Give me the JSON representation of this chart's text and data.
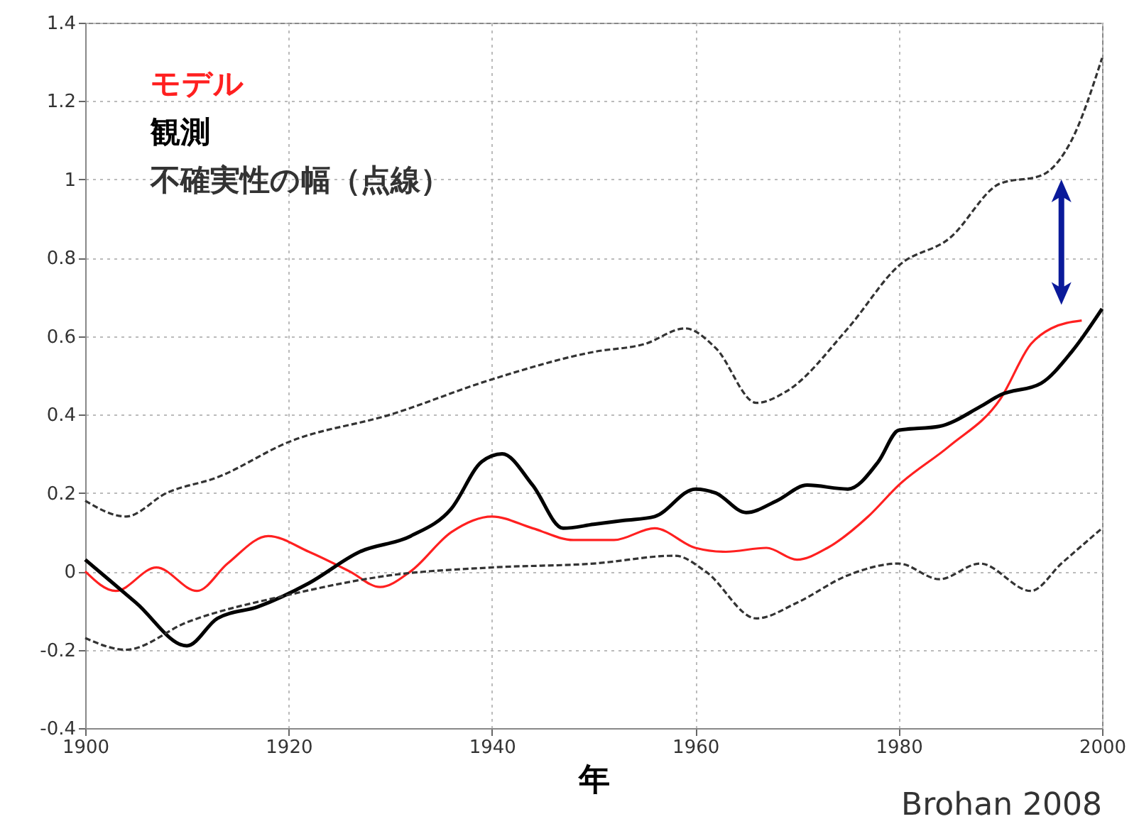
{
  "chart_data": {
    "type": "line",
    "xlabel": "年",
    "legend": "top left",
    "grid": true,
    "marker": "none",
    "xlim": [
      1900,
      2000
    ],
    "xticks": [
      1900,
      1920,
      1940,
      1960,
      1980,
      2000
    ],
    "ylim": [
      -0.4,
      1.4
    ],
    "yticks": [
      -0.4,
      -0.2,
      0,
      0.2,
      0.4,
      0.6,
      0.8,
      {
        "value": 1,
        "label": "1"
      },
      1.2,
      1.4
    ],
    "annotations": [
      "Brohan 2008"
    ],
    "series": [
      {
        "name": "モデル",
        "color": "#ff2020",
        "line_style": "solid",
        "x": [
          1900,
          1903,
          1907,
          1911,
          1914,
          1918,
          1922,
          1926,
          1929,
          1932,
          1936,
          1940,
          1944,
          1948,
          1952,
          1956,
          1960,
          1963,
          1967,
          1970,
          1973,
          1977,
          1980,
          1985,
          1990,
          1993,
          1995,
          1998
        ],
        "values": [
          0.0,
          -0.05,
          0.01,
          -0.05,
          0.02,
          0.09,
          0.05,
          0.0,
          -0.04,
          0.0,
          0.1,
          0.14,
          0.11,
          0.08,
          0.08,
          0.11,
          0.06,
          0.05,
          0.06,
          0.03,
          0.06,
          0.14,
          0.22,
          0.32,
          0.44,
          0.58,
          0.62,
          0.64
        ]
      },
      {
        "name": "観測",
        "color": "#000000",
        "line_style": "solid",
        "x": [
          1900,
          1905,
          1910,
          1913,
          1917,
          1922,
          1927,
          1932,
          1936,
          1939,
          1941,
          1944,
          1947,
          1950,
          1953,
          1956,
          1960,
          1962,
          1965,
          1968,
          1971,
          1975,
          1978,
          1980,
          1984,
          1988,
          1990,
          1994,
          1997,
          2000
        ],
        "values": [
          0.03,
          -0.08,
          -0.19,
          -0.12,
          -0.09,
          -0.03,
          0.05,
          0.09,
          0.16,
          0.28,
          0.3,
          0.22,
          0.11,
          0.12,
          0.13,
          0.14,
          0.21,
          0.2,
          0.15,
          0.18,
          0.22,
          0.21,
          0.28,
          0.36,
          0.37,
          0.42,
          0.45,
          0.48,
          0.56,
          0.67
        ]
      },
      {
        "name": "不確実性の幅（点線）",
        "color": "#333333",
        "line_style": "dashed",
        "x": [
          1900,
          1904,
          1908,
          1913,
          1920,
          1930,
          1940,
          1950,
          1955,
          1959,
          1962,
          1966,
          1969,
          1975,
          1980,
          1985,
          1990,
          1994,
          1997,
          2000
        ],
        "values": [
          0.18,
          0.14,
          0.2,
          0.24,
          0.33,
          0.4,
          0.49,
          0.56,
          0.58,
          0.62,
          0.57,
          0.43,
          0.46,
          0.62,
          0.78,
          0.85,
          0.99,
          1.01,
          1.1,
          1.31
        ]
      },
      {
        "color": "#333333",
        "line_style": "dashed",
        "x": [
          1900,
          1904,
          1910,
          1920,
          1930,
          1940,
          1950,
          1958,
          1961,
          1966,
          1970,
          1975,
          1980,
          1984,
          1988,
          1993,
          1996,
          2000
        ],
        "values": [
          -0.17,
          -0.2,
          -0.13,
          -0.06,
          -0.01,
          0.01,
          0.02,
          0.04,
          0.0,
          -0.12,
          -0.08,
          -0.01,
          0.02,
          -0.02,
          0.02,
          -0.05,
          0.02,
          0.11
        ]
      }
    ]
  }
}
